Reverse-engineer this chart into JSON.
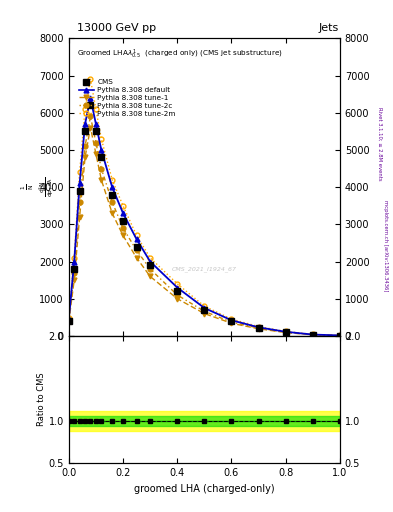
{
  "title_top": "13000 GeV pp",
  "title_right": "Jets",
  "panel_title": "Groomed LHA$\\lambda^{1}_{0.5}$  (charged only) (CMS jet substructure)",
  "xlabel": "groomed LHA (charged-only)",
  "ylabel": "$\\frac{1}{\\mathrm{N}} / \\mathrm{d}\\lambda$",
  "ylabel_ratio": "Ratio to CMS",
  "right_label1": "Rivet 3.1.10; ≥ 2.8M events",
  "right_label2": "mcplots.cern.ch [arXiv:1306.3436]",
  "watermark": "CMS_2021_I1924_67",
  "x_vals": [
    0.0,
    0.02,
    0.04,
    0.06,
    0.08,
    0.1,
    0.12,
    0.16,
    0.2,
    0.25,
    0.3,
    0.4,
    0.5,
    0.6,
    0.7,
    0.8,
    0.9,
    1.0
  ],
  "cms_y": [
    400,
    1800,
    3900,
    5500,
    6200,
    5500,
    4800,
    3800,
    3100,
    2400,
    1900,
    1200,
    700,
    400,
    220,
    100,
    30,
    10
  ],
  "default_y": [
    450,
    2000,
    4100,
    5700,
    6400,
    5700,
    5000,
    4000,
    3300,
    2600,
    2000,
    1300,
    750,
    420,
    230,
    110,
    35,
    12
  ],
  "tune1_y": [
    380,
    1500,
    3200,
    4800,
    5600,
    4900,
    4200,
    3300,
    2700,
    2100,
    1600,
    1000,
    600,
    340,
    190,
    90,
    28,
    8
  ],
  "tune2c_y": [
    420,
    1700,
    3600,
    5100,
    5900,
    5200,
    4500,
    3600,
    2900,
    2300,
    1800,
    1100,
    660,
    370,
    210,
    95,
    30,
    9
  ],
  "tune2m_y": [
    480,
    2100,
    4400,
    6100,
    6900,
    6100,
    5300,
    4200,
    3500,
    2700,
    2100,
    1400,
    800,
    450,
    250,
    120,
    38,
    13
  ],
  "ylim_main": [
    0,
    8000
  ],
  "ylim_ratio": [
    0.5,
    2.0
  ],
  "yticks_main": [
    0,
    1000,
    2000,
    3000,
    4000,
    5000,
    6000,
    7000,
    8000
  ],
  "yticks_ratio": [
    0.5,
    1.0,
    2.0
  ],
  "color_cms": "#000000",
  "color_default": "#0000cc",
  "color_tune1": "#cc8800",
  "color_tune2c": "#cc8800",
  "color_tune2m": "#ffaa00",
  "green_band_lo": 0.94,
  "green_band_hi": 1.06,
  "yellow_band_lo": 0.88,
  "yellow_band_hi": 1.12
}
